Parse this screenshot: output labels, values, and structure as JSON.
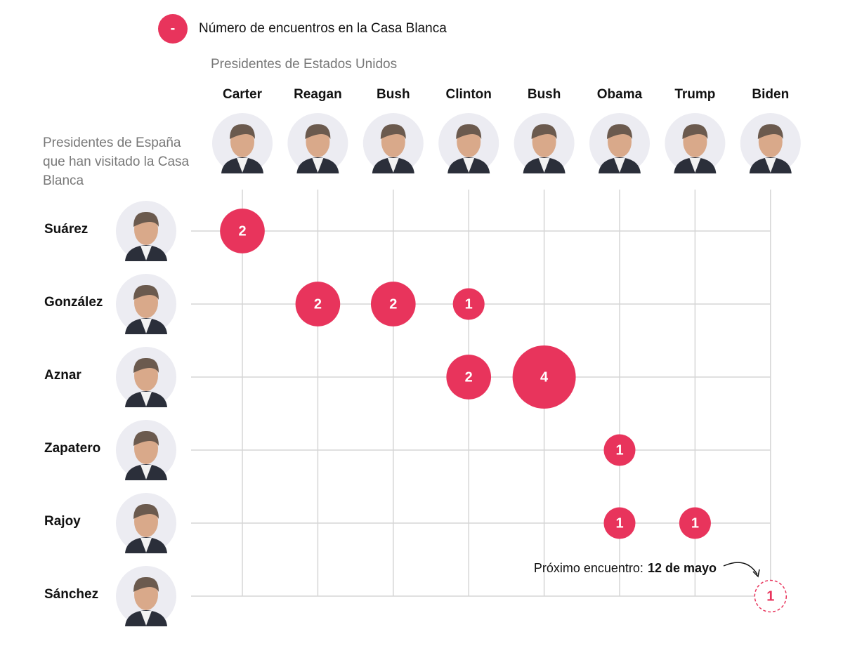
{
  "chart_data": {
    "type": "bubble-matrix",
    "legend": {
      "symbol": "-",
      "label": "Número de encuentros en la Casa Blanca"
    },
    "column_title": "Presidentes de Estados Unidos",
    "row_title": "Presidentes de España que han visitado la Casa Blanca",
    "color": "#e8345c",
    "categories": [
      "Carter",
      "Reagan",
      "Bush",
      "Clinton",
      "Bush",
      "Obama",
      "Trump",
      "Biden"
    ],
    "series": [
      {
        "name": "Suárez",
        "values": [
          2,
          null,
          null,
          null,
          null,
          null,
          null,
          null
        ]
      },
      {
        "name": "González",
        "values": [
          null,
          2,
          2,
          1,
          null,
          null,
          null,
          null
        ]
      },
      {
        "name": "Aznar",
        "values": [
          null,
          null,
          null,
          2,
          4,
          null,
          null,
          null
        ]
      },
      {
        "name": "Zapatero",
        "values": [
          null,
          null,
          null,
          null,
          null,
          1,
          null,
          null
        ]
      },
      {
        "name": "Rajoy",
        "values": [
          null,
          null,
          null,
          null,
          null,
          1,
          1,
          null
        ]
      },
      {
        "name": "Sánchez",
        "values": [
          null,
          null,
          null,
          null,
          null,
          null,
          null,
          null
        ],
        "planned_values": [
          null,
          null,
          null,
          null,
          null,
          null,
          null,
          1
        ]
      }
    ],
    "annotation": {
      "text": "Próximo encuentro:",
      "date": "12 de mayo"
    }
  }
}
